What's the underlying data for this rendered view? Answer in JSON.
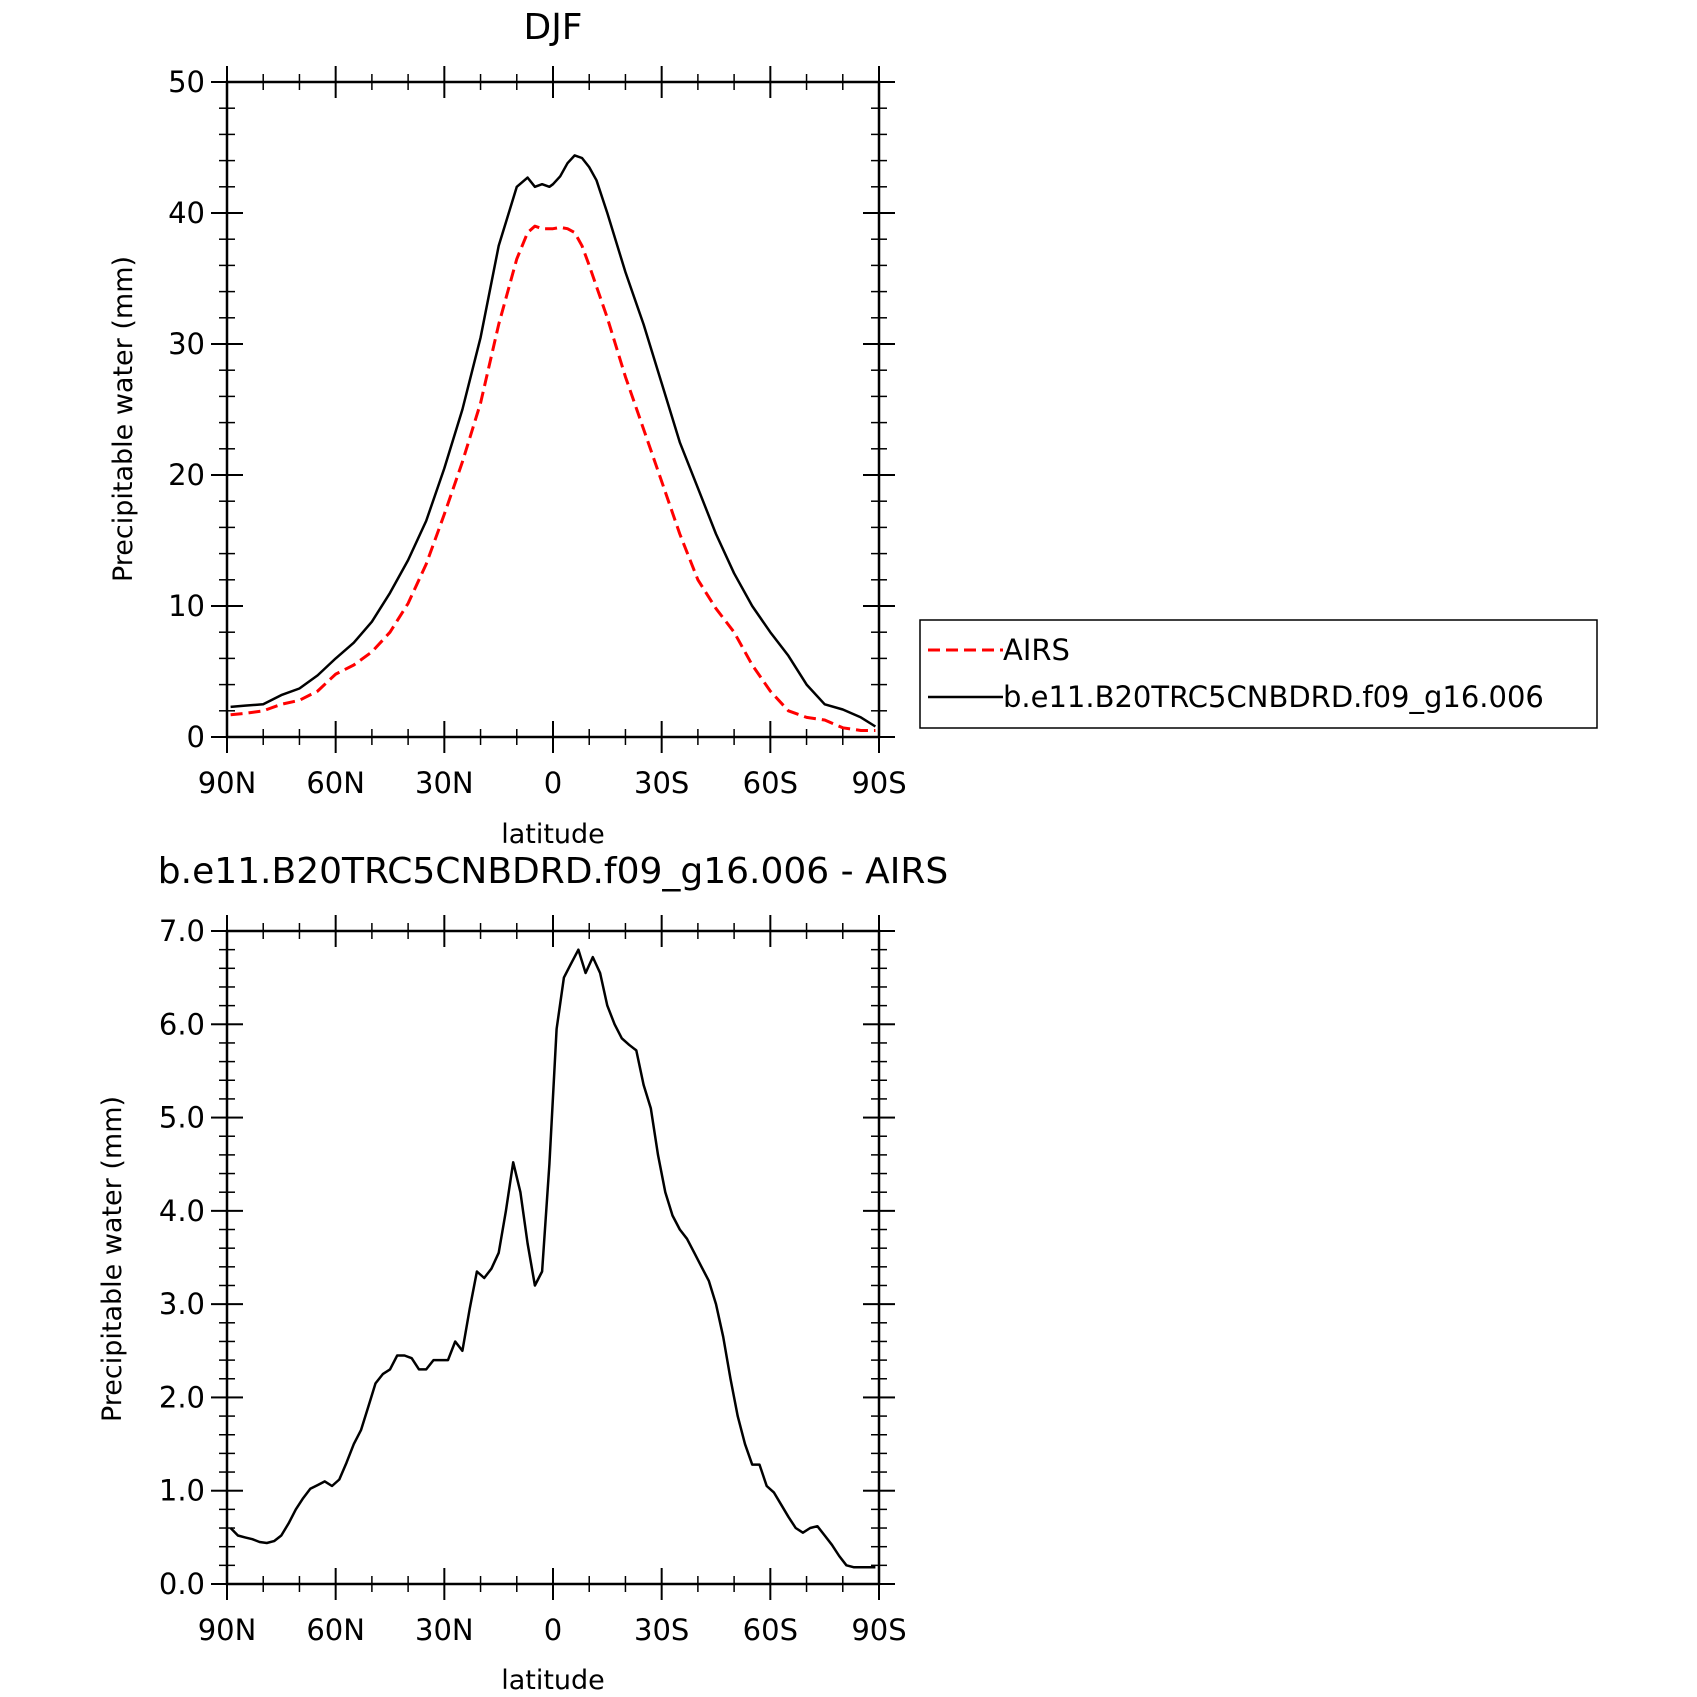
{
  "chart_data": [
    {
      "type": "line",
      "title": "DJF",
      "xlabel": "latitude",
      "ylabel": "Precipitable water (mm)",
      "xlim": [
        90,
        -90
      ],
      "ylim": [
        0,
        50
      ],
      "x_ticks": [
        {
          "value": 90,
          "label": "90N"
        },
        {
          "value": 60,
          "label": "60N"
        },
        {
          "value": 30,
          "label": "30N"
        },
        {
          "value": 0,
          "label": "0"
        },
        {
          "value": -30,
          "label": "30S"
        },
        {
          "value": -60,
          "label": "60S"
        },
        {
          "value": -90,
          "label": "90S"
        }
      ],
      "y_ticks": [
        "0",
        "10",
        "20",
        "30",
        "40",
        "50"
      ],
      "grid": false,
      "legend_position": "right",
      "series": [
        {
          "name": "AIRS",
          "color": "#ff0000",
          "dash": "dashed",
          "x": [
            89,
            85,
            80,
            75,
            70,
            65,
            60,
            55,
            50,
            45,
            40,
            35,
            30,
            25,
            20,
            15,
            10,
            7,
            5,
            3,
            1,
            0,
            -2,
            -4,
            -6,
            -8,
            -10,
            -15,
            -20,
            -25,
            -30,
            -35,
            -40,
            -45,
            -50,
            -55,
            -60,
            -65,
            -70,
            -75,
            -80,
            -85,
            -89
          ],
          "values": [
            1.7,
            1.8,
            2.0,
            2.5,
            2.8,
            3.5,
            4.8,
            5.5,
            6.5,
            8.0,
            10.2,
            13.2,
            17.0,
            21.0,
            25.5,
            31.5,
            36.5,
            38.5,
            39.0,
            38.8,
            38.8,
            38.8,
            38.9,
            38.8,
            38.5,
            37.5,
            36.0,
            32.0,
            27.5,
            23.5,
            19.5,
            15.5,
            12.0,
            9.8,
            8.0,
            5.5,
            3.5,
            2.0,
            1.5,
            1.3,
            0.7,
            0.5,
            0.5
          ]
        },
        {
          "name": "b.e11.B20TRC5CNBDRD.f09_g16.006",
          "color": "#000000",
          "dash": "solid",
          "x": [
            89,
            85,
            80,
            75,
            70,
            65,
            60,
            55,
            50,
            45,
            40,
            35,
            30,
            25,
            20,
            15,
            10,
            7,
            5,
            3,
            1,
            0,
            -2,
            -4,
            -6,
            -8,
            -10,
            -12,
            -15,
            -20,
            -25,
            -30,
            -35,
            -40,
            -45,
            -50,
            -55,
            -60,
            -65,
            -70,
            -75,
            -80,
            -85,
            -89
          ],
          "values": [
            2.3,
            2.4,
            2.5,
            3.2,
            3.7,
            4.7,
            6.0,
            7.2,
            8.8,
            11.0,
            13.5,
            16.5,
            20.5,
            25.0,
            30.5,
            37.5,
            42.0,
            42.7,
            42.0,
            42.2,
            42.0,
            42.2,
            42.8,
            43.8,
            44.4,
            44.2,
            43.5,
            42.5,
            40.0,
            35.5,
            31.5,
            27.0,
            22.5,
            19.0,
            15.5,
            12.5,
            10.0,
            8.0,
            6.2,
            4.0,
            2.5,
            2.1,
            1.5,
            0.8
          ]
        }
      ]
    },
    {
      "type": "line",
      "title": "b.e11.B20TRC5CNBDRD.f09_g16.006 - AIRS",
      "xlabel": "latitude",
      "ylabel": "Precipitable water (mm)",
      "xlim": [
        90,
        -90
      ],
      "ylim": [
        0,
        7
      ],
      "x_ticks": [
        {
          "value": 90,
          "label": "90N"
        },
        {
          "value": 60,
          "label": "60N"
        },
        {
          "value": 30,
          "label": "30N"
        },
        {
          "value": 0,
          "label": "0"
        },
        {
          "value": -30,
          "label": "30S"
        },
        {
          "value": -60,
          "label": "60S"
        },
        {
          "value": -90,
          "label": "90S"
        }
      ],
      "y_ticks": [
        "0.0",
        "1.0",
        "2.0",
        "3.0",
        "4.0",
        "5.0",
        "6.0",
        "7.0"
      ],
      "grid": false,
      "series": [
        {
          "color": "#000000",
          "dash": "solid",
          "x": [
            89,
            87,
            85,
            83,
            81,
            79,
            77,
            75,
            73,
            71,
            69,
            67,
            65,
            63,
            61,
            59,
            57,
            55,
            53,
            51,
            49,
            47,
            45,
            43,
            41,
            39,
            37,
            35,
            33,
            31,
            29,
            27,
            25,
            23,
            21,
            19,
            17,
            15,
            13,
            11,
            9,
            7,
            5,
            3,
            1,
            -1,
            -3,
            -5,
            -7,
            -9,
            -11,
            -13,
            -15,
            -17,
            -19,
            -21,
            -23,
            -25,
            -27,
            -29,
            -31,
            -33,
            -35,
            -37,
            -39,
            -41,
            -43,
            -45,
            -47,
            -49,
            -51,
            -53,
            -55,
            -57,
            -59,
            -61,
            -63,
            -65,
            -67,
            -69,
            -71,
            -73,
            -75,
            -77,
            -79,
            -81,
            -83,
            -85,
            -87,
            -89
          ],
          "values": [
            0.6,
            0.52,
            0.5,
            0.48,
            0.45,
            0.44,
            0.46,
            0.52,
            0.65,
            0.8,
            0.92,
            1.02,
            1.06,
            1.1,
            1.05,
            1.12,
            1.3,
            1.5,
            1.65,
            1.9,
            2.15,
            2.25,
            2.3,
            2.45,
            2.45,
            2.42,
            2.3,
            2.3,
            2.4,
            2.4,
            2.4,
            2.6,
            2.5,
            2.95,
            3.35,
            3.28,
            3.38,
            3.55,
            4.0,
            4.52,
            4.2,
            3.65,
            3.2,
            3.35,
            4.5,
            5.95,
            6.5,
            6.65,
            6.8,
            6.55,
            6.72,
            6.55,
            6.2,
            6.0,
            5.85,
            5.78,
            5.72,
            5.35,
            5.1,
            4.6,
            4.2,
            3.95,
            3.8,
            3.7,
            3.55,
            3.4,
            3.25,
            3.0,
            2.65,
            2.2,
            1.8,
            1.5,
            1.28,
            1.28,
            1.05,
            0.98,
            0.85,
            0.72,
            0.6,
            0.55,
            0.6,
            0.62,
            0.52,
            0.42,
            0.3,
            0.2,
            0.18,
            0.18,
            0.18,
            0.18
          ]
        }
      ]
    }
  ]
}
